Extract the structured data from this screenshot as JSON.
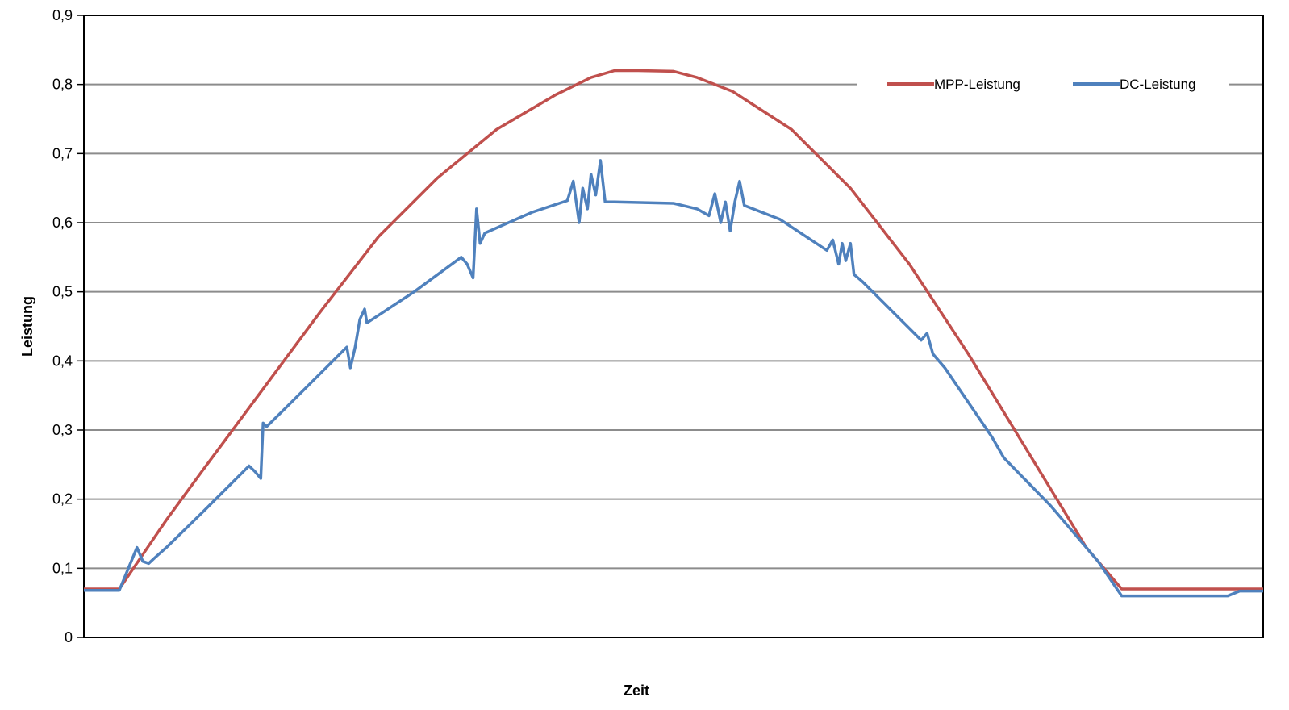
{
  "chart_data": {
    "type": "line",
    "title": "",
    "xlabel": "Zeit",
    "ylabel": "Leistung",
    "ylim": [
      0,
      0.9
    ],
    "yticks": [
      0,
      0.1,
      0.2,
      0.3,
      0.4,
      0.5,
      0.6,
      0.7,
      0.8,
      0.9
    ],
    "ytick_labels": [
      "0",
      "0,1",
      "0,2",
      "0,3",
      "0,4",
      "0,5",
      "0,6",
      "0,7",
      "0,8",
      "0,9"
    ],
    "xlim": [
      0,
      100
    ],
    "grid": true,
    "legend_position": "top-right",
    "series": [
      {
        "name": "MPP-Leistung",
        "color": "#c0504d",
        "x": [
          0,
          3,
          5,
          7,
          10,
          15,
          20,
          25,
          30,
          35,
          40,
          43,
          45,
          47,
          50,
          52,
          55,
          60,
          65,
          70,
          75,
          80,
          85,
          88,
          90,
          92,
          95,
          100
        ],
        "y": [
          0.07,
          0.07,
          0.12,
          0.17,
          0.24,
          0.355,
          0.47,
          0.58,
          0.665,
          0.735,
          0.785,
          0.81,
          0.82,
          0.82,
          0.819,
          0.81,
          0.79,
          0.735,
          0.65,
          0.54,
          0.41,
          0.27,
          0.13,
          0.07,
          0.07,
          0.07,
          0.07,
          0.07
        ]
      },
      {
        "name": "DC-Leistung",
        "color": "#4f81bd",
        "x": [
          0,
          3,
          4.5,
          5,
          5.5,
          6,
          7,
          10,
          14,
          14.5,
          15,
          15.2,
          15.5,
          17,
          22,
          22.3,
          22.6,
          23,
          23.4,
          23.8,
          24,
          28,
          32,
          32.5,
          33,
          33.3,
          33.6,
          34,
          38,
          41,
          41.5,
          42,
          42.3,
          42.7,
          43,
          43.4,
          43.8,
          44.2,
          45,
          50,
          52,
          53,
          53.5,
          54,
          54.4,
          54.8,
          55.2,
          55.6,
          56,
          59,
          63,
          63.5,
          64,
          64.3,
          64.6,
          65,
          65.3,
          66,
          71,
          71.5,
          72,
          73,
          77,
          78,
          82,
          86,
          88,
          90,
          92,
          95,
          97,
          98,
          100
        ],
        "y": [
          0.068,
          0.068,
          0.13,
          0.11,
          0.107,
          0.115,
          0.13,
          0.18,
          0.248,
          0.24,
          0.23,
          0.31,
          0.305,
          0.33,
          0.415,
          0.42,
          0.39,
          0.42,
          0.46,
          0.475,
          0.455,
          0.5,
          0.55,
          0.54,
          0.52,
          0.62,
          0.57,
          0.585,
          0.615,
          0.632,
          0.66,
          0.6,
          0.65,
          0.62,
          0.67,
          0.64,
          0.69,
          0.63,
          0.63,
          0.628,
          0.62,
          0.61,
          0.642,
          0.6,
          0.63,
          0.588,
          0.63,
          0.66,
          0.625,
          0.605,
          0.56,
          0.575,
          0.54,
          0.57,
          0.545,
          0.57,
          0.525,
          0.515,
          0.43,
          0.44,
          0.41,
          0.39,
          0.29,
          0.26,
          0.19,
          0.11,
          0.06,
          0.06,
          0.06,
          0.06,
          0.06,
          0.067,
          0.067
        ]
      }
    ]
  }
}
